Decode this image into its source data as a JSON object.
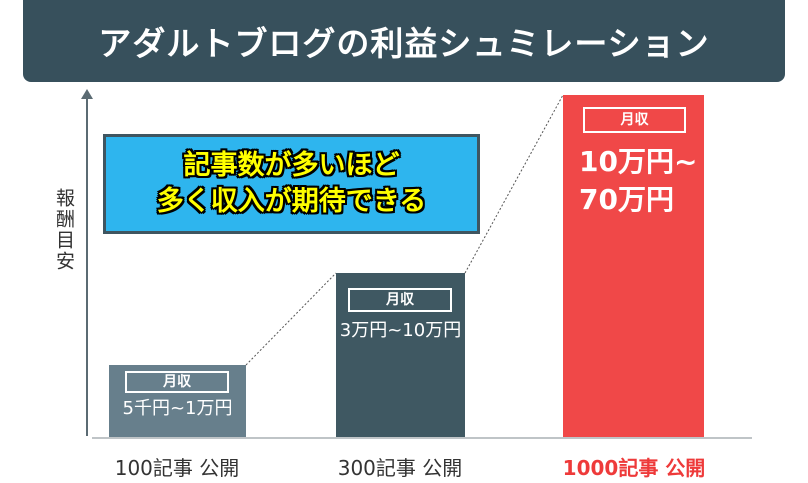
{
  "title": "アダルトブログの利益シュミレーション",
  "callout": {
    "line1": "記事数が多いほど",
    "line2": "多く収入が期待できる"
  },
  "colors": {
    "title_bg": "#37505c",
    "bar_100": "#677f8c",
    "bar_300": "#3f5862",
    "bar_1000": "#f04848",
    "highlight_text": "#ee3a3a",
    "callout_bg": "#2eb5ee",
    "callout_text": "#ffff00"
  },
  "chart_data": {
    "type": "bar",
    "ylabel": "報酬目安",
    "categories": [
      "100記事 公開",
      "300記事 公開",
      "1000記事 公開"
    ],
    "label_box_text": "月収",
    "value_labels": [
      "5千円~1万円",
      "3万円~10万円",
      "10万円~ 70万円"
    ],
    "value_lines": [
      [
        "5千円~1万円"
      ],
      [
        "3万円~10万円"
      ],
      [
        "10万円~",
        "70万円"
      ]
    ],
    "highlight_index": 2,
    "ranges_jpy": [
      [
        5000,
        10000
      ],
      [
        30000,
        100000
      ],
      [
        100000,
        700000
      ]
    ]
  }
}
